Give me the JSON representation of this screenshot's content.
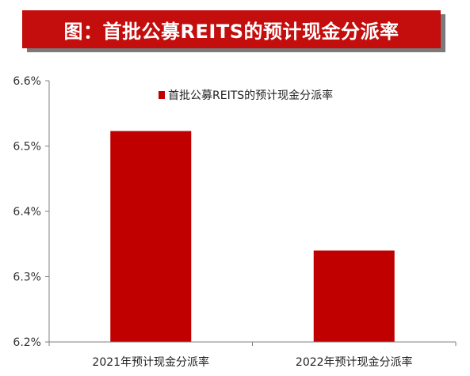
{
  "colors": {
    "banner": "#c40d0d",
    "bar": "#c00000",
    "axis": "#808080"
  },
  "chart_data": {
    "type": "bar",
    "title": "图：首批公募REITS的预计现金分派率",
    "categories": [
      "2021年预计现金分派率",
      "2022年预计现金分派率"
    ],
    "series": [
      {
        "name": "首批公募REITS的预计现金分派率",
        "values": [
          6.523,
          6.34
        ]
      }
    ],
    "ylim": [
      6.2,
      6.6
    ],
    "yticks": [
      "6.2%",
      "6.3%",
      "6.4%",
      "6.5%",
      "6.6%"
    ],
    "ytick_values": [
      6.2,
      6.3,
      6.4,
      6.5,
      6.6
    ],
    "legend": "top-center",
    "grid": false
  }
}
